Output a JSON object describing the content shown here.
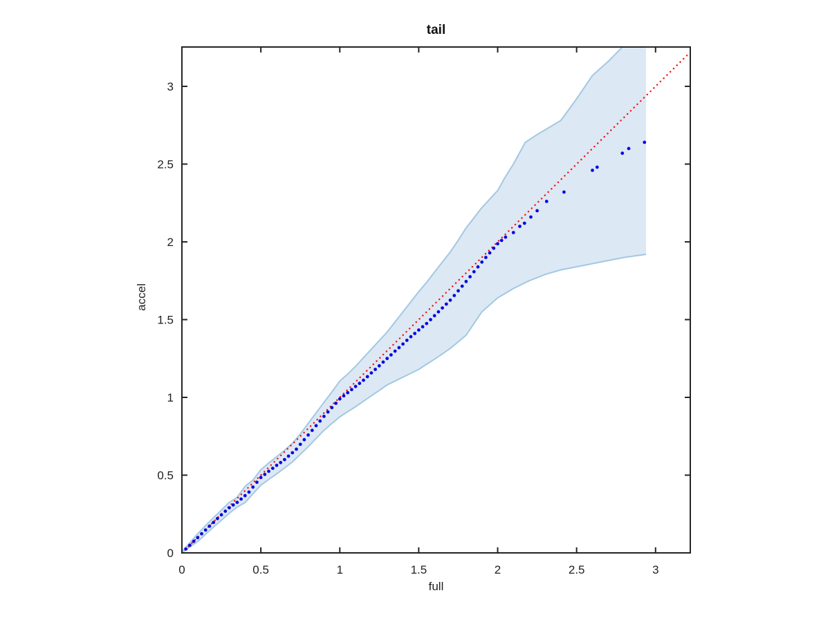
{
  "chart_data": {
    "type": "scatter",
    "title": "tail",
    "xlabel": "full",
    "ylabel": "accel",
    "xlim": [
      0,
      3.22
    ],
    "ylim": [
      0,
      3.253
    ],
    "grid": false,
    "legend": null,
    "xticks": [
      "0",
      "0.5",
      "1",
      "1.5",
      "2",
      "2.5",
      "3"
    ],
    "xtick_values": [
      0,
      0.5,
      1,
      1.5,
      2,
      2.5,
      3
    ],
    "yticks": [
      "0",
      "0.5",
      "1",
      "1.5",
      "2",
      "2.5",
      "3"
    ],
    "ytick_values": [
      0,
      0.5,
      1,
      1.5,
      2,
      2.5,
      3
    ],
    "colors": {
      "axis": "#232323",
      "text": "#1f1f1f",
      "marker": "#0a0ae0",
      "reference": "#f21414",
      "band_fill": "#dce8f4",
      "band_edge": "#a2c8e2"
    },
    "band": {
      "name": "confidence-band",
      "fill": "#dce8f4",
      "edge": "#a2c8e2",
      "right_edge_x": 2.94,
      "upper": [
        [
          0,
          0.01
        ],
        [
          0.05,
          0.065
        ],
        [
          0.1,
          0.123
        ],
        [
          0.15,
          0.175
        ],
        [
          0.2,
          0.226
        ],
        [
          0.25,
          0.275
        ],
        [
          0.3,
          0.325
        ],
        [
          0.35,
          0.358
        ],
        [
          0.4,
          0.428
        ],
        [
          0.45,
          0.468
        ],
        [
          0.5,
          0.535
        ],
        [
          0.55,
          0.578
        ],
        [
          0.6,
          0.618
        ],
        [
          0.65,
          0.66
        ],
        [
          0.7,
          0.705
        ],
        [
          0.75,
          0.765
        ],
        [
          0.8,
          0.833
        ],
        [
          0.85,
          0.9
        ],
        [
          0.9,
          0.968
        ],
        [
          0.95,
          1.035
        ],
        [
          1,
          1.105
        ],
        [
          1.05,
          1.15
        ],
        [
          1.1,
          1.2
        ],
        [
          1.15,
          1.255
        ],
        [
          1.2,
          1.31
        ],
        [
          1.25,
          1.365
        ],
        [
          1.3,
          1.42
        ],
        [
          1.35,
          1.485
        ],
        [
          1.4,
          1.55
        ],
        [
          1.45,
          1.615
        ],
        [
          1.5,
          1.68
        ],
        [
          1.55,
          1.74
        ],
        [
          1.6,
          1.805
        ],
        [
          1.65,
          1.87
        ],
        [
          1.7,
          1.935
        ],
        [
          1.75,
          2.01
        ],
        [
          1.8,
          2.09
        ],
        [
          1.85,
          2.155
        ],
        [
          1.9,
          2.22
        ],
        [
          1.95,
          2.275
        ],
        [
          2,
          2.33
        ],
        [
          2.05,
          2.42
        ],
        [
          2.1,
          2.5
        ],
        [
          2.175,
          2.64
        ],
        [
          2.25,
          2.69
        ],
        [
          2.3,
          2.72
        ],
        [
          2.4,
          2.78
        ],
        [
          2.5,
          2.92
        ],
        [
          2.6,
          3.07
        ],
        [
          2.7,
          3.16
        ],
        [
          2.79,
          3.253
        ]
      ],
      "lower": [
        [
          0,
          0
        ],
        [
          0.05,
          0.038
        ],
        [
          0.1,
          0.073
        ],
        [
          0.15,
          0.12
        ],
        [
          0.2,
          0.166
        ],
        [
          0.25,
          0.21
        ],
        [
          0.3,
          0.255
        ],
        [
          0.35,
          0.295
        ],
        [
          0.4,
          0.323
        ],
        [
          0.45,
          0.38
        ],
        [
          0.5,
          0.435
        ],
        [
          0.55,
          0.472
        ],
        [
          0.6,
          0.508
        ],
        [
          0.65,
          0.546
        ],
        [
          0.7,
          0.585
        ],
        [
          0.75,
          0.634
        ],
        [
          0.8,
          0.683
        ],
        [
          0.85,
          0.736
        ],
        [
          0.9,
          0.788
        ],
        [
          0.95,
          0.832
        ],
        [
          1,
          0.875
        ],
        [
          1.05,
          0.908
        ],
        [
          1.1,
          0.94
        ],
        [
          1.15,
          0.975
        ],
        [
          1.2,
          1.01
        ],
        [
          1.25,
          1.045
        ],
        [
          1.3,
          1.08
        ],
        [
          1.35,
          1.105
        ],
        [
          1.4,
          1.13
        ],
        [
          1.45,
          1.155
        ],
        [
          1.5,
          1.18
        ],
        [
          1.55,
          1.213
        ],
        [
          1.6,
          1.245
        ],
        [
          1.65,
          1.28
        ],
        [
          1.7,
          1.315
        ],
        [
          1.75,
          1.357
        ],
        [
          1.8,
          1.4
        ],
        [
          1.85,
          1.475
        ],
        [
          1.9,
          1.55
        ],
        [
          1.95,
          1.595
        ],
        [
          2,
          1.64
        ],
        [
          2.1,
          1.7
        ],
        [
          2.2,
          1.75
        ],
        [
          2.3,
          1.79
        ],
        [
          2.4,
          1.82
        ],
        [
          2.5,
          1.84
        ],
        [
          2.6,
          1.86
        ],
        [
          2.7,
          1.88
        ],
        [
          2.8,
          1.9
        ],
        [
          2.94,
          1.92
        ]
      ]
    },
    "reference_line": {
      "name": "identity-line",
      "style": "dotted",
      "color": "#f21414",
      "from": [
        0,
        0
      ],
      "to": [
        3.217,
        3.217
      ]
    },
    "points": {
      "name": "quantile-points",
      "color": "#0a0ae0",
      "xy": [
        [
          0.025,
          0.025
        ],
        [
          0.05,
          0.049
        ],
        [
          0.075,
          0.074
        ],
        [
          0.1,
          0.098
        ],
        [
          0.125,
          0.123
        ],
        [
          0.15,
          0.147
        ],
        [
          0.175,
          0.172
        ],
        [
          0.2,
          0.196
        ],
        [
          0.225,
          0.221
        ],
        [
          0.25,
          0.245
        ],
        [
          0.275,
          0.268
        ],
        [
          0.3,
          0.29
        ],
        [
          0.325,
          0.308
        ],
        [
          0.35,
          0.325
        ],
        [
          0.375,
          0.346
        ],
        [
          0.4,
          0.368
        ],
        [
          0.425,
          0.391
        ],
        [
          0.45,
          0.423
        ],
        [
          0.475,
          0.454
        ],
        [
          0.5,
          0.485
        ],
        [
          0.525,
          0.505
        ],
        [
          0.55,
          0.525
        ],
        [
          0.575,
          0.544
        ],
        [
          0.6,
          0.563
        ],
        [
          0.625,
          0.581
        ],
        [
          0.65,
          0.6
        ],
        [
          0.675,
          0.622
        ],
        [
          0.7,
          0.644
        ],
        [
          0.725,
          0.667
        ],
        [
          0.75,
          0.698
        ],
        [
          0.775,
          0.728
        ],
        [
          0.8,
          0.758
        ],
        [
          0.825,
          0.788
        ],
        [
          0.85,
          0.818
        ],
        [
          0.875,
          0.848
        ],
        [
          0.9,
          0.878
        ],
        [
          0.925,
          0.906
        ],
        [
          0.95,
          0.934
        ],
        [
          0.975,
          0.962
        ],
        [
          1,
          0.99
        ],
        [
          1.025,
          1.01
        ],
        [
          1.05,
          1.03
        ],
        [
          1.075,
          1.05
        ],
        [
          1.1,
          1.07
        ],
        [
          1.125,
          1.09
        ],
        [
          1.15,
          1.11
        ],
        [
          1.175,
          1.133
        ],
        [
          1.2,
          1.157
        ],
        [
          1.225,
          1.18
        ],
        [
          1.25,
          1.203
        ],
        [
          1.275,
          1.227
        ],
        [
          1.3,
          1.25
        ],
        [
          1.325,
          1.273
        ],
        [
          1.35,
          1.297
        ],
        [
          1.375,
          1.32
        ],
        [
          1.4,
          1.343
        ],
        [
          1.425,
          1.367
        ],
        [
          1.45,
          1.39
        ],
        [
          1.475,
          1.411
        ],
        [
          1.5,
          1.433
        ],
        [
          1.525,
          1.454
        ],
        [
          1.55,
          1.475
        ],
        [
          1.575,
          1.5
        ],
        [
          1.6,
          1.525
        ],
        [
          1.625,
          1.55
        ],
        [
          1.65,
          1.575
        ],
        [
          1.675,
          1.6
        ],
        [
          1.7,
          1.625
        ],
        [
          1.725,
          1.655
        ],
        [
          1.75,
          1.685
        ],
        [
          1.775,
          1.715
        ],
        [
          1.8,
          1.745
        ],
        [
          1.825,
          1.776
        ],
        [
          1.85,
          1.808
        ],
        [
          1.875,
          1.839
        ],
        [
          1.9,
          1.87
        ],
        [
          1.925,
          1.9
        ],
        [
          1.95,
          1.929
        ],
        [
          1.975,
          1.959
        ],
        [
          2,
          1.988
        ],
        [
          2.025,
          2.009
        ],
        [
          2.05,
          2.03
        ],
        [
          2.1,
          2.06
        ],
        [
          2.14,
          2.1
        ],
        [
          2.17,
          2.12
        ],
        [
          2.21,
          2.16
        ],
        [
          2.25,
          2.2
        ],
        [
          2.31,
          2.26
        ],
        [
          2.42,
          2.32
        ],
        [
          2.6,
          2.46
        ],
        [
          2.63,
          2.48
        ],
        [
          2.79,
          2.57
        ],
        [
          2.83,
          2.6
        ],
        [
          2.93,
          2.64
        ]
      ]
    }
  }
}
